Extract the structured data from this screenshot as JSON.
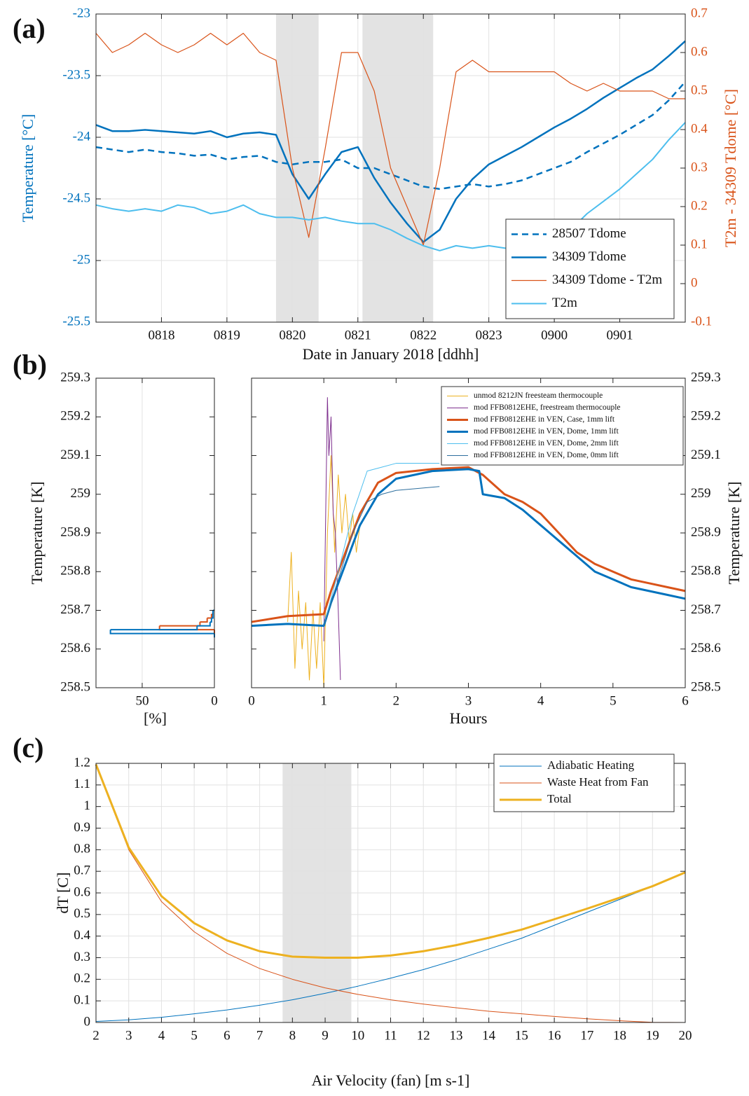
{
  "chart_data": [
    {
      "type": "line",
      "panel_label": "(a)",
      "xlabel": "Date in January 2018 [ddhh]",
      "ylabel": "Temperature [°C]",
      "y2label": "T2m - 34309 Tdome [°C]",
      "xlim": [
        17,
        26
      ],
      "xticks": [
        {
          "value": 18,
          "label": "0818"
        },
        {
          "value": 19,
          "label": "0819"
        },
        {
          "value": 20,
          "label": "0820"
        },
        {
          "value": 21,
          "label": "0821"
        },
        {
          "value": 22,
          "label": "0822"
        },
        {
          "value": 23,
          "label": "0823"
        },
        {
          "value": 24,
          "label": "0900"
        },
        {
          "value": 25,
          "label": "0901"
        }
      ],
      "ylim": [
        -25.5,
        -23
      ],
      "yticks": [
        -25.5,
        -25,
        -24.5,
        -24,
        -23.5,
        -23
      ],
      "ycolor": "#0072BD",
      "y2lim": [
        -0.1,
        0.7
      ],
      "y2ticks": [
        -0.1,
        0,
        0.1,
        0.2,
        0.3,
        0.4,
        0.5,
        0.6,
        0.7
      ],
      "y2color": "#D95319",
      "grid": true,
      "legend": "lower right",
      "shaded_regions": [
        [
          19.75,
          20.4
        ],
        [
          21.07,
          22.15
        ]
      ],
      "x": [
        17,
        17.25,
        17.5,
        17.75,
        18,
        18.25,
        18.5,
        18.75,
        19,
        19.25,
        19.5,
        19.75,
        20,
        20.25,
        20.5,
        20.75,
        21,
        21.25,
        21.5,
        21.75,
        22,
        22.25,
        22.5,
        22.75,
        23,
        23.25,
        23.5,
        23.75,
        24,
        24.25,
        24.5,
        24.75,
        25,
        25.25,
        25.5,
        25.75,
        26
      ],
      "series": [
        {
          "name": "28507 Tdome",
          "color": "#0072BD",
          "width": 2.5,
          "dash": "dashed",
          "values": [
            -24.08,
            -24.1,
            -24.12,
            -24.1,
            -24.12,
            -24.13,
            -24.15,
            -24.14,
            -24.18,
            -24.16,
            -24.15,
            -24.2,
            -24.22,
            -24.2,
            -24.2,
            -24.18,
            -24.25,
            -24.25,
            -24.3,
            -24.35,
            -24.4,
            -24.42,
            -24.4,
            -24.38,
            -24.4,
            -24.38,
            -24.35,
            -24.3,
            -24.25,
            -24.2,
            -24.12,
            -24.05,
            -23.98,
            -23.9,
            -23.82,
            -23.7,
            -23.55
          ]
        },
        {
          "name": "34309 Tdome",
          "color": "#0072BD",
          "width": 2.5,
          "values": [
            -23.9,
            -23.95,
            -23.95,
            -23.94,
            -23.95,
            -23.96,
            -23.97,
            -23.95,
            -24.0,
            -23.97,
            -23.96,
            -23.98,
            -24.3,
            -24.5,
            -24.3,
            -24.12,
            -24.08,
            -24.33,
            -24.53,
            -24.7,
            -24.85,
            -24.75,
            -24.5,
            -24.34,
            -24.22,
            -24.15,
            -24.08,
            -24.0,
            -23.92,
            -23.85,
            -23.77,
            -23.68,
            -23.6,
            -23.52,
            -23.45,
            -23.34,
            -23.22
          ]
        },
        {
          "name": "34309 Tdome - T2m",
          "color": "#D95319",
          "width": 1.2,
          "axis": "y2",
          "values": [
            0.65,
            0.6,
            0.62,
            0.65,
            0.62,
            0.6,
            0.62,
            0.65,
            0.62,
            0.65,
            0.6,
            0.58,
            0.3,
            0.12,
            0.35,
            0.6,
            0.6,
            0.5,
            0.3,
            0.2,
            0.1,
            0.3,
            0.55,
            0.58,
            0.55,
            0.55,
            0.55,
            0.55,
            0.55,
            0.52,
            0.5,
            0.52,
            0.5,
            0.5,
            0.5,
            0.48,
            0.48
          ]
        },
        {
          "name": "T2m",
          "color": "#4DBEEE",
          "width": 2,
          "values": [
            -24.55,
            -24.58,
            -24.6,
            -24.58,
            -24.6,
            -24.55,
            -24.57,
            -24.62,
            -24.6,
            -24.55,
            -24.62,
            -24.65,
            -24.65,
            -24.67,
            -24.65,
            -24.68,
            -24.7,
            -24.7,
            -24.75,
            -24.82,
            -24.88,
            -24.92,
            -24.88,
            -24.9,
            -24.88,
            -24.9,
            -24.9,
            -24.88,
            -24.85,
            -24.75,
            -24.62,
            -24.52,
            -24.42,
            -24.3,
            -24.18,
            -24.02,
            -23.88
          ]
        }
      ]
    },
    {
      "type": "histogram",
      "panel_label": "(b)",
      "orientation": "horizontal",
      "xlabel": "[%]",
      "ylabel": "Temperature [K]",
      "xlim": [
        82,
        0
      ],
      "xticks": [
        50,
        0
      ],
      "xgrid": true,
      "ylim": [
        258.5,
        259.3
      ],
      "yticks": [
        258.5,
        258.6,
        258.7,
        258.8,
        258.9,
        259,
        259.1,
        259.2,
        259.3
      ],
      "bins": [
        258.63,
        258.64,
        258.65,
        258.66,
        258.67,
        258.68,
        258.69,
        258.7
      ],
      "series": [
        {
          "color": "#D95319",
          "width": 2,
          "values": [
            0,
            0,
            38,
            10,
            5,
            2,
            1
          ]
        },
        {
          "color": "#0072BD",
          "width": 2,
          "values": [
            0,
            72,
            12,
            3,
            2,
            1,
            1
          ]
        }
      ]
    },
    {
      "type": "line",
      "xlabel": "Hours",
      "ylabel": "Temperature [K]",
      "yaxis_side": "right",
      "legend": "upper right",
      "xlim": [
        0,
        6
      ],
      "xticks": [
        0,
        1,
        2,
        3,
        4,
        5,
        6
      ],
      "ylim": [
        258.5,
        259.3
      ],
      "yticks": [
        258.5,
        258.6,
        258.7,
        258.8,
        258.9,
        259,
        259.1,
        259.2,
        259.3
      ],
      "series": [
        {
          "name": "unmod 8212JN freesteam thermocouple",
          "color": "#EDB120",
          "width": 1,
          "x": [
            0.5,
            0.55,
            0.6,
            0.65,
            0.7,
            0.75,
            0.8,
            0.85,
            0.9,
            0.95,
            1.0,
            1.05,
            1.1,
            1.15,
            1.2,
            1.25,
            1.3,
            1.35,
            1.4,
            1.45,
            1.5
          ],
          "values": [
            258.67,
            258.85,
            258.55,
            258.75,
            258.6,
            258.72,
            258.52,
            258.7,
            258.55,
            258.72,
            258.5,
            258.9,
            259.1,
            258.85,
            259.05,
            258.9,
            259.0,
            258.88,
            258.95,
            258.85,
            258.92
          ]
        },
        {
          "name": "mod FFB0812EHE, freestream thermocouple",
          "color": "#7E2F8E",
          "width": 1,
          "x": [
            1.0,
            1.03,
            1.05,
            1.07,
            1.1,
            1.13,
            1.16,
            1.2,
            1.23
          ],
          "values": [
            258.62,
            259.0,
            259.25,
            259.1,
            259.2,
            258.95,
            258.9,
            258.7,
            258.52
          ]
        },
        {
          "name": "mod FFB0812EHE in VEN, Case, 1mm lift",
          "color": "#D95319",
          "width": 3,
          "x": [
            0,
            0.5,
            1.0,
            1.1,
            1.3,
            1.5,
            1.75,
            2.0,
            2.25,
            2.5,
            3.0,
            3.2,
            3.5,
            3.75,
            4,
            4.25,
            4.5,
            4.75,
            5,
            5.25,
            5.5,
            5.75,
            6
          ],
          "values": [
            258.67,
            258.685,
            258.69,
            258.75,
            258.85,
            258.95,
            259.03,
            259.055,
            259.06,
            259.065,
            259.07,
            259.05,
            259.0,
            258.98,
            258.95,
            258.9,
            258.85,
            258.82,
            258.8,
            258.78,
            258.77,
            258.76,
            258.75
          ]
        },
        {
          "name": "mod FFB0812EHE in VEN, Dome, 1mm lift",
          "color": "#0072BD",
          "width": 3,
          "x": [
            0,
            0.5,
            1.0,
            1.1,
            1.3,
            1.5,
            1.75,
            2.0,
            2.5,
            3.0,
            3.15,
            3.2,
            3.5,
            3.75,
            4,
            4.25,
            4.5,
            4.75,
            5,
            5.25,
            5.5,
            5.75,
            6
          ],
          "values": [
            258.66,
            258.665,
            258.66,
            258.72,
            258.82,
            258.92,
            259.0,
            259.04,
            259.06,
            259.065,
            259.06,
            259.0,
            258.99,
            258.96,
            258.92,
            258.88,
            258.84,
            258.8,
            258.78,
            258.76,
            258.75,
            258.74,
            258.73
          ]
        },
        {
          "name": "mod FFB0812EHE in VEN, Dome, 2mm lift",
          "color": "#4DBEEE",
          "width": 1,
          "x": [
            1.0,
            1.2,
            1.4,
            1.6,
            1.8,
            2.0,
            2.3,
            2.6
          ],
          "values": [
            258.66,
            258.8,
            258.95,
            259.06,
            259.07,
            259.08,
            259.08,
            259.08
          ]
        },
        {
          "name": "mod FFB0812EHE in VEN, Dome, 0mm lift",
          "color": "#2E6F9E",
          "width": 1,
          "x": [
            1.0,
            1.2,
            1.4,
            1.6,
            1.8,
            2.0,
            2.3,
            2.6
          ],
          "values": [
            258.66,
            258.78,
            258.9,
            258.98,
            259.0,
            259.01,
            259.015,
            259.02
          ]
        }
      ]
    },
    {
      "type": "line",
      "panel_label": "(c)",
      "xlabel": "Air Velocity (fan) [m s-1]",
      "ylabel": "dT [C]",
      "xlim": [
        2,
        20
      ],
      "xticks": [
        2,
        3,
        4,
        5,
        6,
        7,
        8,
        9,
        10,
        11,
        12,
        13,
        14,
        15,
        16,
        17,
        18,
        19,
        20
      ],
      "ylim": [
        0,
        1.2
      ],
      "yticks": [
        0,
        0.1,
        0.2,
        0.3,
        0.4,
        0.5,
        0.6,
        0.7,
        0.8,
        0.9,
        1,
        1.1,
        1.2
      ],
      "grid": true,
      "legend": "upper right",
      "shaded_regions": [
        [
          7.7,
          9.8
        ]
      ],
      "x": [
        2,
        3,
        4,
        5,
        6,
        7,
        8,
        9,
        10,
        11,
        12,
        13,
        14,
        15,
        16,
        17,
        18,
        19,
        20
      ],
      "series": [
        {
          "name": "Adiabatic Heating",
          "color": "#0072BD",
          "width": 1,
          "values": [
            0.005,
            0.012,
            0.024,
            0.04,
            0.058,
            0.08,
            0.105,
            0.135,
            0.168,
            0.205,
            0.245,
            0.29,
            0.34,
            0.39,
            0.45,
            0.51,
            0.57,
            0.63,
            0.695
          ]
        },
        {
          "name": "Waste Heat from Fan",
          "color": "#D95319",
          "width": 1,
          "values": [
            1.19,
            0.8,
            0.56,
            0.42,
            0.32,
            0.25,
            0.2,
            0.16,
            0.13,
            0.105,
            0.085,
            0.068,
            0.052,
            0.04,
            0.028,
            0.017,
            0.008,
            0.001,
            0
          ]
        },
        {
          "name": "Total",
          "color": "#EDB120",
          "width": 3,
          "values": [
            1.195,
            0.81,
            0.585,
            0.46,
            0.38,
            0.33,
            0.305,
            0.3,
            0.3,
            0.31,
            0.33,
            0.358,
            0.392,
            0.43,
            0.478,
            0.527,
            0.578,
            0.631,
            0.695
          ]
        }
      ]
    }
  ]
}
